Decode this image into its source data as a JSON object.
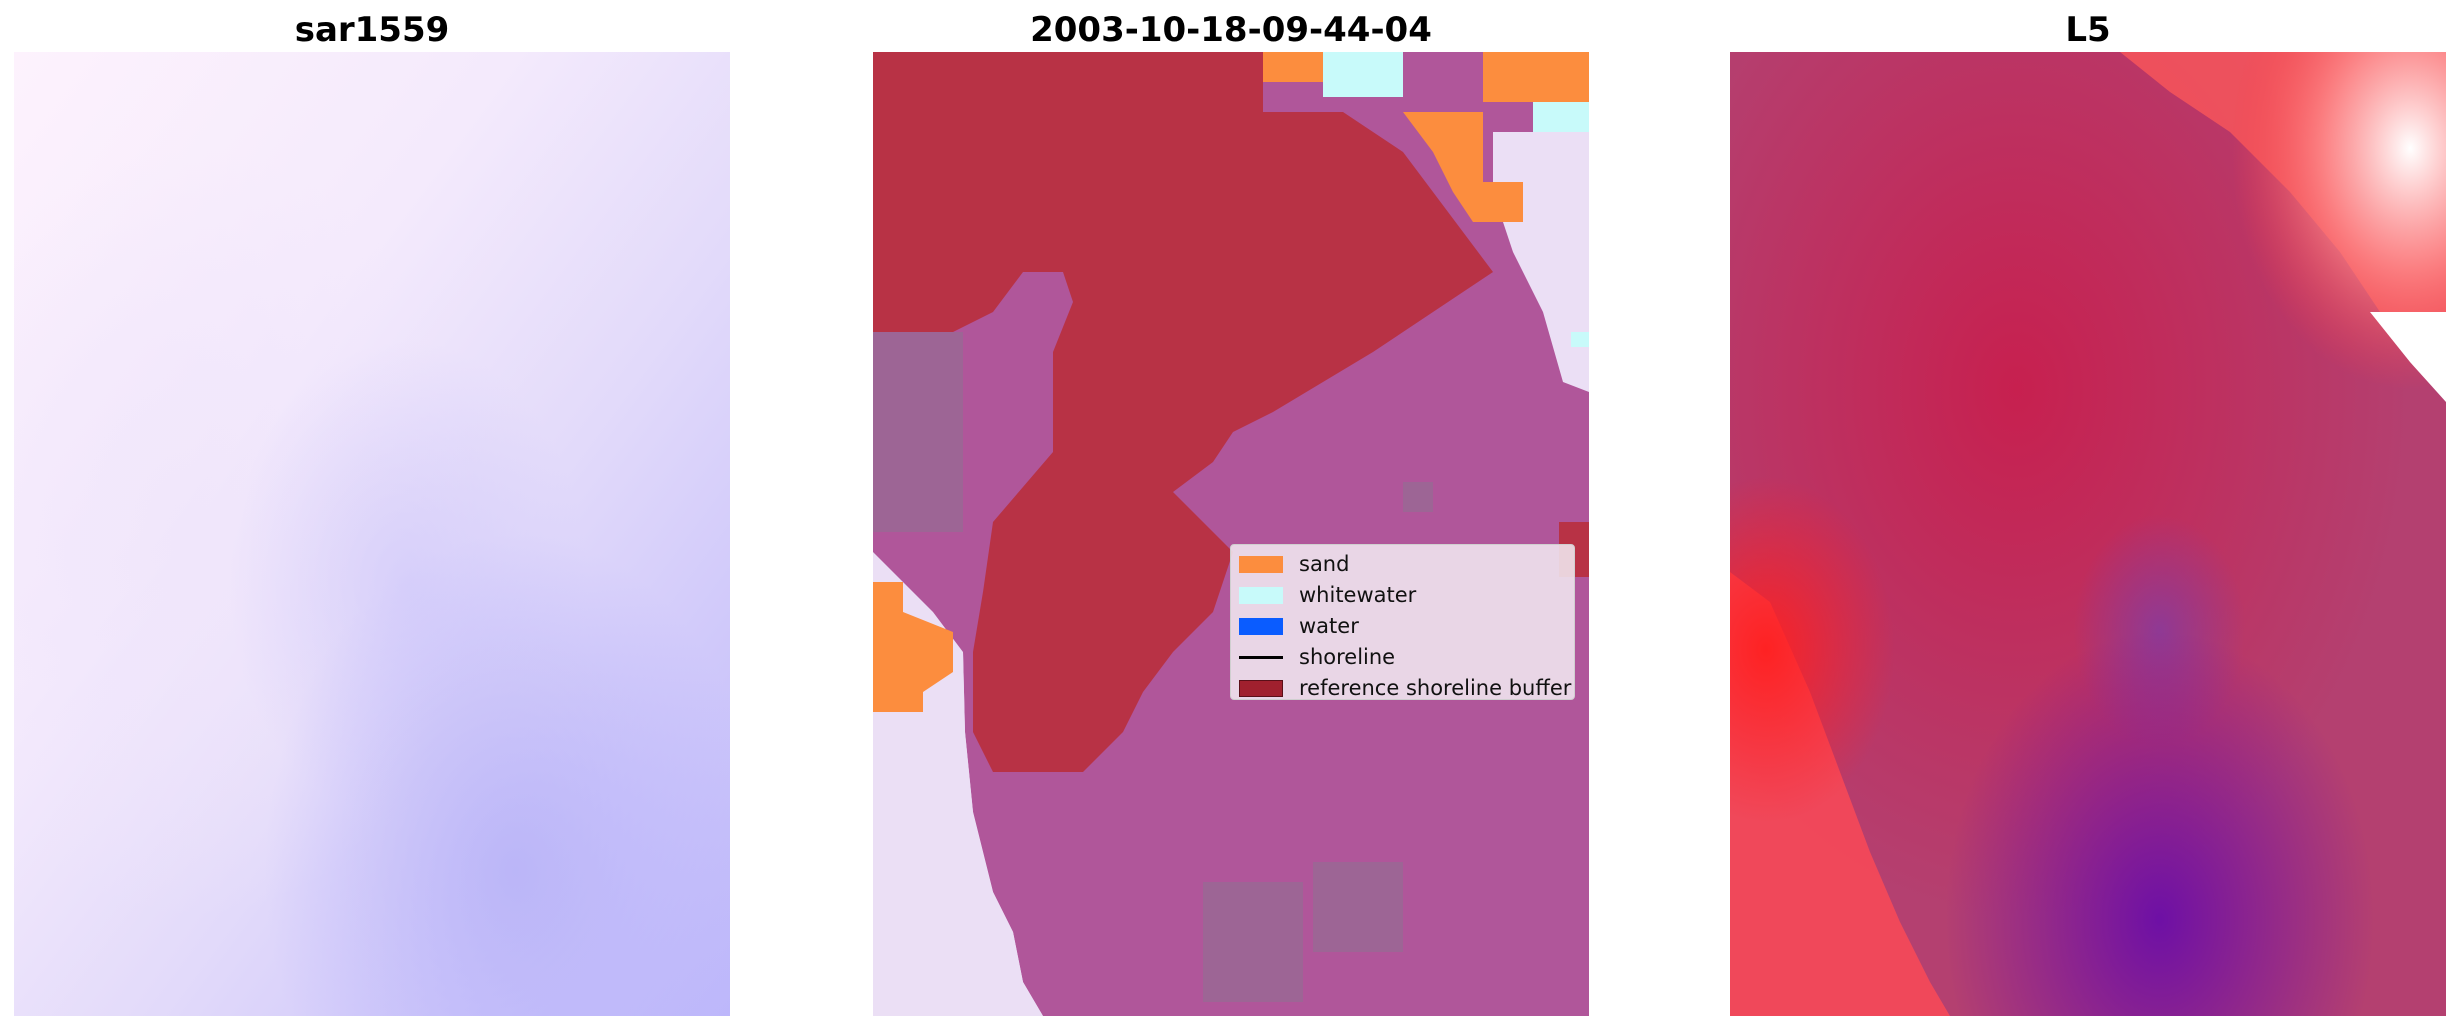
{
  "panels": [
    {
      "title": "sar1559"
    },
    {
      "title": "2003-10-18-09-44-04"
    },
    {
      "title": "L5"
    }
  ],
  "legend": {
    "items": [
      {
        "label": "sand",
        "color": "#fc8d3e",
        "kind": "patch"
      },
      {
        "label": "whitewater",
        "color": "#c8fafa",
        "kind": "patch"
      },
      {
        "label": "water",
        "color": "#0a5cff",
        "kind": "patch"
      },
      {
        "label": "shoreline",
        "color": "#000000",
        "kind": "line"
      },
      {
        "label": "reference shoreline buffer",
        "color": "#a0202e",
        "kind": "patch"
      }
    ]
  },
  "colors": {
    "sand": "#fc8d3e",
    "whitewater": "#c8fafa",
    "water": "#0a5cff",
    "buffer": "#b83245",
    "overlay_water": "#b0569a",
    "overlay_gray": "#9d6595",
    "background_light": "#eadcf4"
  }
}
